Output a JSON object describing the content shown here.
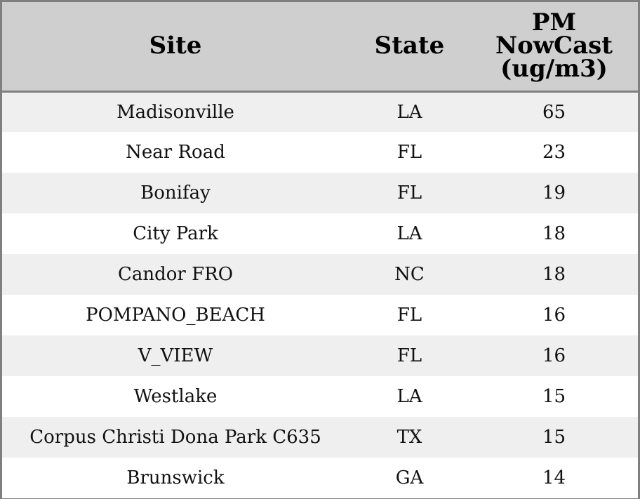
{
  "chart_data": {
    "type": "table",
    "columns": [
      "Site",
      "State",
      "PM NowCast (ug/m3)"
    ],
    "header_lines": {
      "pm": [
        "PM",
        "NowCast",
        "(ug/m3)"
      ]
    },
    "rows": [
      [
        "Madisonville",
        "LA",
        "65"
      ],
      [
        "Near Road",
        "FL",
        "23"
      ],
      [
        "Bonifay",
        "FL",
        "19"
      ],
      [
        "City Park",
        "LA",
        "18"
      ],
      [
        "Candor FRO",
        "NC",
        "18"
      ],
      [
        "POMPANO_BEACH",
        "FL",
        "16"
      ],
      [
        "V_VIEW",
        "FL",
        "16"
      ],
      [
        "Westlake",
        "LA",
        "15"
      ],
      [
        "Corpus Christi Dona Park C635",
        "TX",
        "15"
      ],
      [
        "Brunswick",
        "GA",
        "14"
      ]
    ]
  },
  "colors": {
    "header_background": "#cfcfcf",
    "row_shade": "#efefef",
    "row_plain": "#ffffff",
    "border": "#7f7f7f",
    "text": "#000000"
  }
}
